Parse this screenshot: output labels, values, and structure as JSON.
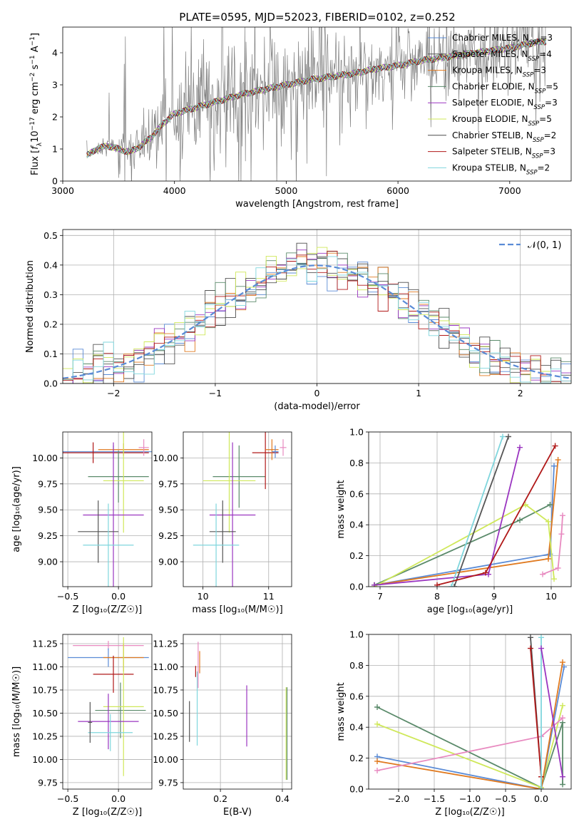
{
  "figure": {
    "title": "PLATE=0595, MJD=52023, FIBERID=0102, z=0.252"
  },
  "chart_data": [
    {
      "id": "spectrum",
      "type": "line",
      "xlabel": "wavelength [Angstrom, rest frame]",
      "ylabel_parts": [
        "Flux [",
        "f",
        "λ",
        "10",
        "−17",
        " erg cm",
        "−2",
        " s",
        "−1",
        " A",
        "−1",
        "]"
      ],
      "xlim": [
        3000,
        7550
      ],
      "ylim": [
        0,
        4.8
      ],
      "xticks": [
        3000,
        4000,
        5000,
        6000,
        7000
      ],
      "yticks": [
        0,
        1,
        2,
        3,
        4
      ],
      "data_curve": {
        "x": [
          3220,
          3300,
          3400,
          3500,
          3600,
          3700,
          3800,
          3900,
          4000,
          4200,
          4400,
          4600,
          4800,
          5000,
          5200,
          5400,
          5600,
          5800,
          6000,
          6200,
          6400,
          6600,
          6800,
          7000,
          7200,
          7300
        ],
        "y": [
          0.8,
          1.0,
          1.1,
          1.0,
          0.9,
          1.1,
          1.4,
          1.8,
          2.1,
          2.3,
          2.5,
          2.7,
          2.85,
          3.0,
          3.15,
          3.25,
          3.35,
          3.5,
          3.6,
          3.75,
          3.85,
          3.95,
          4.05,
          4.15,
          4.3,
          4.35
        ]
      },
      "legend": [
        {
          "label": "Chabrier MILES, N",
          "sub": "SSP",
          "tail": "=3",
          "color": "#5a8bd6"
        },
        {
          "label": "Salpeter MILES, N",
          "sub": "SSP",
          "tail": "=4",
          "color": "#555555"
        },
        {
          "label": "Kroupa MILES, N",
          "sub": "SSP",
          "tail": "=3",
          "color": "#e07a20"
        },
        {
          "label": "Chabrier ELODIE, N",
          "sub": "SSP",
          "tail": "=5",
          "color": "#5a8a6a"
        },
        {
          "label": "Salpeter ELODIE, N",
          "sub": "SSP",
          "tail": "=3",
          "color": "#9a35c0"
        },
        {
          "label": "Kroupa ELODIE, N",
          "sub": "SSP",
          "tail": "=5",
          "color": "#cfe85a"
        },
        {
          "label": "Chabrier STELIB, N",
          "sub": "SSP",
          "tail": "=2",
          "color": "#4a4a4a"
        },
        {
          "label": "Salpeter STELIB, N",
          "sub": "SSP",
          "tail": "=3",
          "color": "#b01818"
        },
        {
          "label": "Kroupa STELIB, N",
          "sub": "SSP",
          "tail": "=2",
          "color": "#7fd6dd"
        }
      ]
    },
    {
      "id": "residuals",
      "type": "line",
      "xlabel": "(data-model)/error",
      "ylabel": "Normed distribution",
      "xlim": [
        -2.5,
        2.5
      ],
      "ylim": [
        0,
        0.52
      ],
      "xticks": [
        -2,
        -1,
        0,
        1,
        2
      ],
      "yticks": [
        0.0,
        0.1,
        0.2,
        0.3,
        0.4,
        0.5
      ],
      "legend_label": "𝒩(0, 1)",
      "gauss_color": "#5a8bd6"
    },
    {
      "id": "age-vs-Z",
      "type": "scatter",
      "xlabel": "Z [log₁₀(Z/Z☉)]",
      "ylabel": "age  [log₁₀(age/yr)]",
      "xlim": [
        -0.55,
        0.33
      ],
      "ylim": [
        8.76,
        10.25
      ],
      "xticks": [
        -0.5,
        0.0
      ],
      "yticks": [
        9.0,
        9.25,
        9.5,
        9.75,
        10.0
      ],
      "points": [
        {
          "x": -0.05,
          "xerr": 0.5,
          "y": 10.06,
          "yerr": 0.06,
          "color": "#5a8bd6"
        },
        {
          "x": -0.25,
          "xerr": 0.55,
          "y": 10.05,
          "yerr": 0.1,
          "color": "#b01818"
        },
        {
          "x": 0.05,
          "xerr": 0.25,
          "y": 10.08,
          "yerr": 0.06,
          "color": "#e07a20"
        },
        {
          "x": 0.0,
          "xerr": 0.3,
          "y": 9.82,
          "yerr": 0.25,
          "color": "#5a8a6a"
        },
        {
          "x": 0.05,
          "xerr": 0.2,
          "y": 9.78,
          "yerr": 0.5,
          "color": "#cfe85a"
        },
        {
          "x": -0.05,
          "xerr": 0.3,
          "y": 9.45,
          "yerr": 0.7,
          "color": "#9a35c0"
        },
        {
          "x": -0.2,
          "xerr": 0.2,
          "y": 9.29,
          "yerr": 0.3,
          "color": "#555555"
        },
        {
          "x": -0.1,
          "xerr": 0.25,
          "y": 9.16,
          "yerr": 0.4,
          "color": "#7fd6dd"
        },
        {
          "x": 0.25,
          "xerr": 0.05,
          "y": 10.1,
          "yerr": 0.08,
          "color": "#e88ac0"
        }
      ]
    },
    {
      "id": "age-vs-mass",
      "type": "scatter",
      "xlabel": "mass [log₁₀(M/M☉)]",
      "xlim": [
        9.7,
        11.35
      ],
      "ylim": [
        8.76,
        10.25
      ],
      "xticks": [
        10,
        11
      ],
      "yticks": [
        9.0,
        9.25,
        9.5,
        9.75,
        10.0
      ],
      "points": [
        {
          "x": 10.55,
          "xerr": 0.4,
          "y": 9.82,
          "yerr": 0.3,
          "color": "#5a8a6a"
        },
        {
          "x": 10.4,
          "xerr": 0.4,
          "y": 9.78,
          "yerr": 0.5,
          "color": "#cfe85a"
        },
        {
          "x": 10.45,
          "xerr": 0.35,
          "y": 9.45,
          "yerr": 0.7,
          "color": "#9a35c0"
        },
        {
          "x": 10.3,
          "xerr": 0.2,
          "y": 9.29,
          "yerr": 0.3,
          "color": "#555555"
        },
        {
          "x": 10.2,
          "xerr": 0.35,
          "y": 9.16,
          "yerr": 0.4,
          "color": "#7fd6dd"
        },
        {
          "x": 10.95,
          "xerr": 0.2,
          "y": 10.05,
          "yerr": 0.35,
          "color": "#b01818"
        },
        {
          "x": 11.05,
          "xerr": 0.1,
          "y": 10.08,
          "yerr": 0.1,
          "color": "#e07a20"
        },
        {
          "x": 11.1,
          "xerr": 0.05,
          "y": 10.06,
          "yerr": 0.06,
          "color": "#5a8bd6"
        },
        {
          "x": 11.22,
          "xerr": 0.05,
          "y": 10.1,
          "yerr": 0.08,
          "color": "#e88ac0"
        }
      ]
    },
    {
      "id": "weight-vs-age",
      "type": "line",
      "xlabel": "age  [log₁₀(age/yr)]",
      "ylabel": "mass weight",
      "xlim": [
        6.8,
        10.35
      ],
      "ylim": [
        0,
        1.0
      ],
      "xticks": [
        7,
        8,
        9,
        10
      ],
      "yticks": [
        0.0,
        0.2,
        0.4,
        0.6,
        0.8,
        1.0
      ],
      "series": [
        {
          "color": "#5a8bd6",
          "x": [
            6.9,
            9.98,
            10.05
          ],
          "y": [
            0.01,
            0.21,
            0.78
          ]
        },
        {
          "color": "#e07a20",
          "x": [
            6.9,
            9.95,
            10.12
          ],
          "y": [
            0.01,
            0.18,
            0.82
          ]
        },
        {
          "color": "#5a8a6a",
          "x": [
            6.9,
            9.45,
            9.98
          ],
          "y": [
            0.01,
            0.43,
            0.53
          ]
        },
        {
          "color": "#cfe85a",
          "x": [
            6.9,
            9.55,
            9.95,
            10.05
          ],
          "y": [
            0.0,
            0.53,
            0.42,
            0.05
          ]
        },
        {
          "color": "#9a35c0",
          "x": [
            6.9,
            8.9,
            9.45
          ],
          "y": [
            0.01,
            0.08,
            0.9
          ]
        },
        {
          "color": "#555555",
          "x": [
            8.3,
            9.25
          ],
          "y": [
            0.0,
            0.97
          ]
        },
        {
          "color": "#7fd6dd",
          "x": [
            8.25,
            9.15
          ],
          "y": [
            0.0,
            0.97
          ]
        },
        {
          "color": "#b01818",
          "x": [
            8.0,
            8.85,
            10.07
          ],
          "y": [
            0.01,
            0.09,
            0.91
          ]
        },
        {
          "color": "#e88ac0",
          "x": [
            9.85,
            10.12,
            10.18,
            10.2
          ],
          "y": [
            0.08,
            0.12,
            0.34,
            0.46
          ]
        }
      ]
    },
    {
      "id": "mass-vs-Z",
      "type": "scatter",
      "xlabel": "Z [log₁₀(Z/Z☉)]",
      "ylabel": "mass [log₁₀(M/M☉)]",
      "xlim": [
        -0.55,
        0.33
      ],
      "ylim": [
        9.68,
        11.35
      ],
      "xticks": [
        -0.5,
        0.0
      ],
      "yticks": [
        9.75,
        10.0,
        10.25,
        10.5,
        10.75,
        11.0,
        11.25
      ],
      "points": [
        {
          "x": -0.1,
          "xerr": 0.35,
          "y": 11.23,
          "yerr": 0.05,
          "color": "#e88ac0"
        },
        {
          "x": -0.1,
          "xerr": 0.4,
          "y": 11.1,
          "yerr": 0.1,
          "color": "#5a8bd6"
        },
        {
          "x": 0.05,
          "xerr": 0.2,
          "y": 11.1,
          "yerr": 0.15,
          "color": "#e07a20"
        },
        {
          "x": -0.05,
          "xerr": 0.2,
          "y": 10.92,
          "yerr": 0.2,
          "color": "#b01818"
        },
        {
          "x": 0.02,
          "xerr": 0.25,
          "y": 10.53,
          "yerr": 0.3,
          "color": "#5a8a6a"
        },
        {
          "x": 0.05,
          "xerr": 0.2,
          "y": 10.57,
          "yerr": 0.75,
          "color": "#cfe85a"
        },
        {
          "x": -0.1,
          "xerr": 0.3,
          "y": 10.41,
          "yerr": 0.3,
          "color": "#9a35c0"
        },
        {
          "x": -0.08,
          "xerr": 0.22,
          "y": 10.29,
          "yerr": 0.2,
          "color": "#7fd6dd"
        },
        {
          "x": -0.28,
          "xerr": 0.02,
          "y": 10.4,
          "yerr": 0.22,
          "color": "#555555"
        }
      ]
    },
    {
      "id": "mass-vs-ebv",
      "type": "scatter",
      "xlabel": "E(B-V)",
      "xlim": [
        0.08,
        0.43
      ],
      "ylim": [
        9.68,
        11.35
      ],
      "xticks": [
        0.2,
        0.4
      ],
      "yticks": [
        9.75,
        10.0,
        10.25,
        10.5,
        10.75,
        11.0,
        11.25
      ],
      "points": [
        {
          "x": 0.1,
          "xerr": 0,
          "y": 10.41,
          "yerr": 0.22,
          "color": "#555555"
        },
        {
          "x": 0.125,
          "xerr": 0,
          "y": 10.55,
          "yerr": 0.4,
          "color": "#7fd6dd"
        },
        {
          "x": 0.128,
          "xerr": 0,
          "y": 11.02,
          "yerr": 0.25,
          "color": "#e88ac0"
        },
        {
          "x": 0.133,
          "xerr": 0,
          "y": 11.05,
          "yerr": 0.12,
          "color": "#e07a20"
        },
        {
          "x": 0.12,
          "xerr": 0,
          "y": 10.95,
          "yerr": 0.06,
          "color": "#b01818"
        },
        {
          "x": 0.285,
          "xerr": 0,
          "y": 10.47,
          "yerr": 0.33,
          "color": "#9a35c0"
        },
        {
          "x": 0.412,
          "xerr": 0,
          "y": 10.28,
          "yerr": 0.5,
          "color": "#cfe85a"
        },
        {
          "x": 0.415,
          "xerr": 0,
          "y": 10.28,
          "yerr": 0.5,
          "color": "#5a8a6a"
        }
      ]
    },
    {
      "id": "weight-vs-Z",
      "type": "line",
      "xlabel": "Z [log₁₀(Z/Z☉)]",
      "ylabel": "mass weight",
      "xlim": [
        -2.42,
        0.42
      ],
      "ylim": [
        0,
        1.0
      ],
      "xticks": [
        -2.0,
        -1.5,
        -1.0,
        -0.5,
        0.0
      ],
      "yticks": [
        0.0,
        0.2,
        0.4,
        0.6,
        0.8,
        1.0
      ],
      "series": [
        {
          "color": "#5a8a6a",
          "x": [
            -2.3,
            0.0,
            0.3,
            0.3
          ],
          "y": [
            0.53,
            0.01,
            0.43,
            0.03
          ]
        },
        {
          "color": "#cfe85a",
          "x": [
            -2.3,
            0.0,
            0.3
          ],
          "y": [
            0.42,
            0.01,
            0.54
          ]
        },
        {
          "color": "#5a8bd6",
          "x": [
            -2.3,
            0.0,
            0.32
          ],
          "y": [
            0.21,
            0.0,
            0.79
          ]
        },
        {
          "color": "#e07a20",
          "x": [
            -2.3,
            0.0,
            0.3
          ],
          "y": [
            0.18,
            0.0,
            0.82
          ]
        },
        {
          "color": "#e88ac0",
          "x": [
            -2.3,
            0.0,
            0.3
          ],
          "y": [
            0.12,
            0.34,
            0.46
          ]
        },
        {
          "color": "#555555",
          "x": [
            -0.15,
            0.0
          ],
          "y": [
            0.98,
            0.08
          ]
        },
        {
          "color": "#b01818",
          "x": [
            -0.15,
            0.0
          ],
          "y": [
            0.91,
            0.08
          ]
        },
        {
          "color": "#7fd6dd",
          "x": [
            0.0,
            0.0
          ],
          "y": [
            0.98,
            0.0
          ]
        },
        {
          "color": "#9a35c0",
          "x": [
            0.0,
            0.3
          ],
          "y": [
            0.91,
            0.08
          ]
        }
      ]
    }
  ]
}
